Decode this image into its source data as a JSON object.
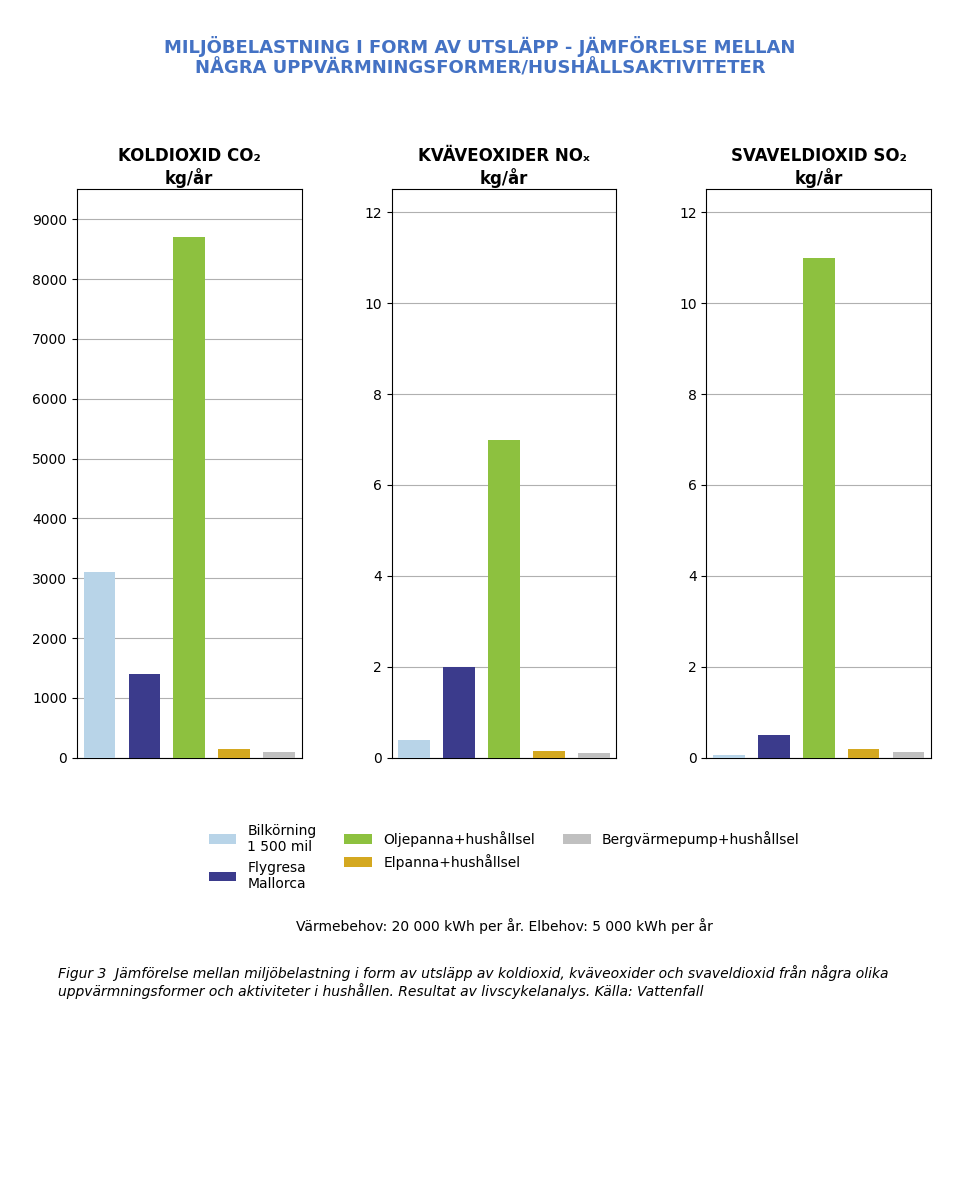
{
  "title": "MILJÖBELASTNING I FORM AV UTSLÄPP - JÄMFÖRELSE MELLAN\nNÅGRA UPPVÄRMNINGSFORMER/HUSHÅLLSAKTIVITETER",
  "title_color": "#4472C4",
  "subtitle": "Värmebehov: 20 000 kWh per år. Elbehov: 5 000 kWh per år",
  "annotations": [
    "Figur 3  Jämförelse mellan miljöbelastning i form av utsläpp av koldioxid, kväveoxider och svaveldioxid från några olika uppvärmningsformer och aktiviteter i hushållen. Resultat av livscykelanalys. Källa: Vattenfall"
  ],
  "legend": "upper center",
  "chart_data": [
    {
      "type": "bar",
      "title": "KOLDIOXID CO₂\nkg/år",
      "categories": [
        "Bilkörning\n1 500 mil",
        "Flygresa\nMallorca",
        "Oljepanna+hushållsel",
        "Elpanna+hushållsel",
        "Bergvärmepump+hushållsel"
      ],
      "values": [
        3100,
        1400,
        8700,
        150,
        100
      ],
      "colors": [
        "#B8D4E8",
        "#3B3B8C",
        "#8DC13F",
        "#D4A820",
        "#C0C0C0"
      ],
      "ylim": [
        0,
        9500
      ],
      "yticks": [
        0,
        1000,
        2000,
        3000,
        4000,
        5000,
        6000,
        7000,
        8000,
        9000
      ],
      "grid": true,
      "tick_labels": "y"
    },
    {
      "type": "bar",
      "title": "KVÄVEOXIDER NOₓ\nkg/år",
      "categories": [
        "Bilkörning\n1 500 mil",
        "Flygresa\nMallorca",
        "Oljepanna+hushållsel",
        "Elpanna+hushållsel",
        "Bergvärmepump+hushållsel"
      ],
      "values": [
        0.4,
        2.0,
        7.0,
        0.15,
        0.1
      ],
      "colors": [
        "#B8D4E8",
        "#3B3B8C",
        "#8DC13F",
        "#D4A820",
        "#C0C0C0"
      ],
      "ylim": [
        0,
        12.5
      ],
      "yticks": [
        0,
        2,
        4,
        6,
        8,
        10,
        12
      ],
      "grid": true,
      "tick_labels": "y"
    },
    {
      "type": "bar",
      "title": "SVAVELDIOXID SO₂\nkg/år",
      "categories": [
        "Bilkörning\n1 500 mil",
        "Flygresa\nMallorca",
        "Oljepanna+hushållsel",
        "Elpanna+hushållsel",
        "Bergvärmepump+hushållsel"
      ],
      "values": [
        0.05,
        0.5,
        11.0,
        0.2,
        0.12
      ],
      "colors": [
        "#B8D4E8",
        "#3B3B8C",
        "#8DC13F",
        "#D4A820",
        "#C0C0C0"
      ],
      "ylim": [
        0,
        12.5
      ],
      "yticks": [
        0,
        2,
        4,
        6,
        8,
        10,
        12
      ],
      "grid": true,
      "tick_labels": "y"
    }
  ]
}
